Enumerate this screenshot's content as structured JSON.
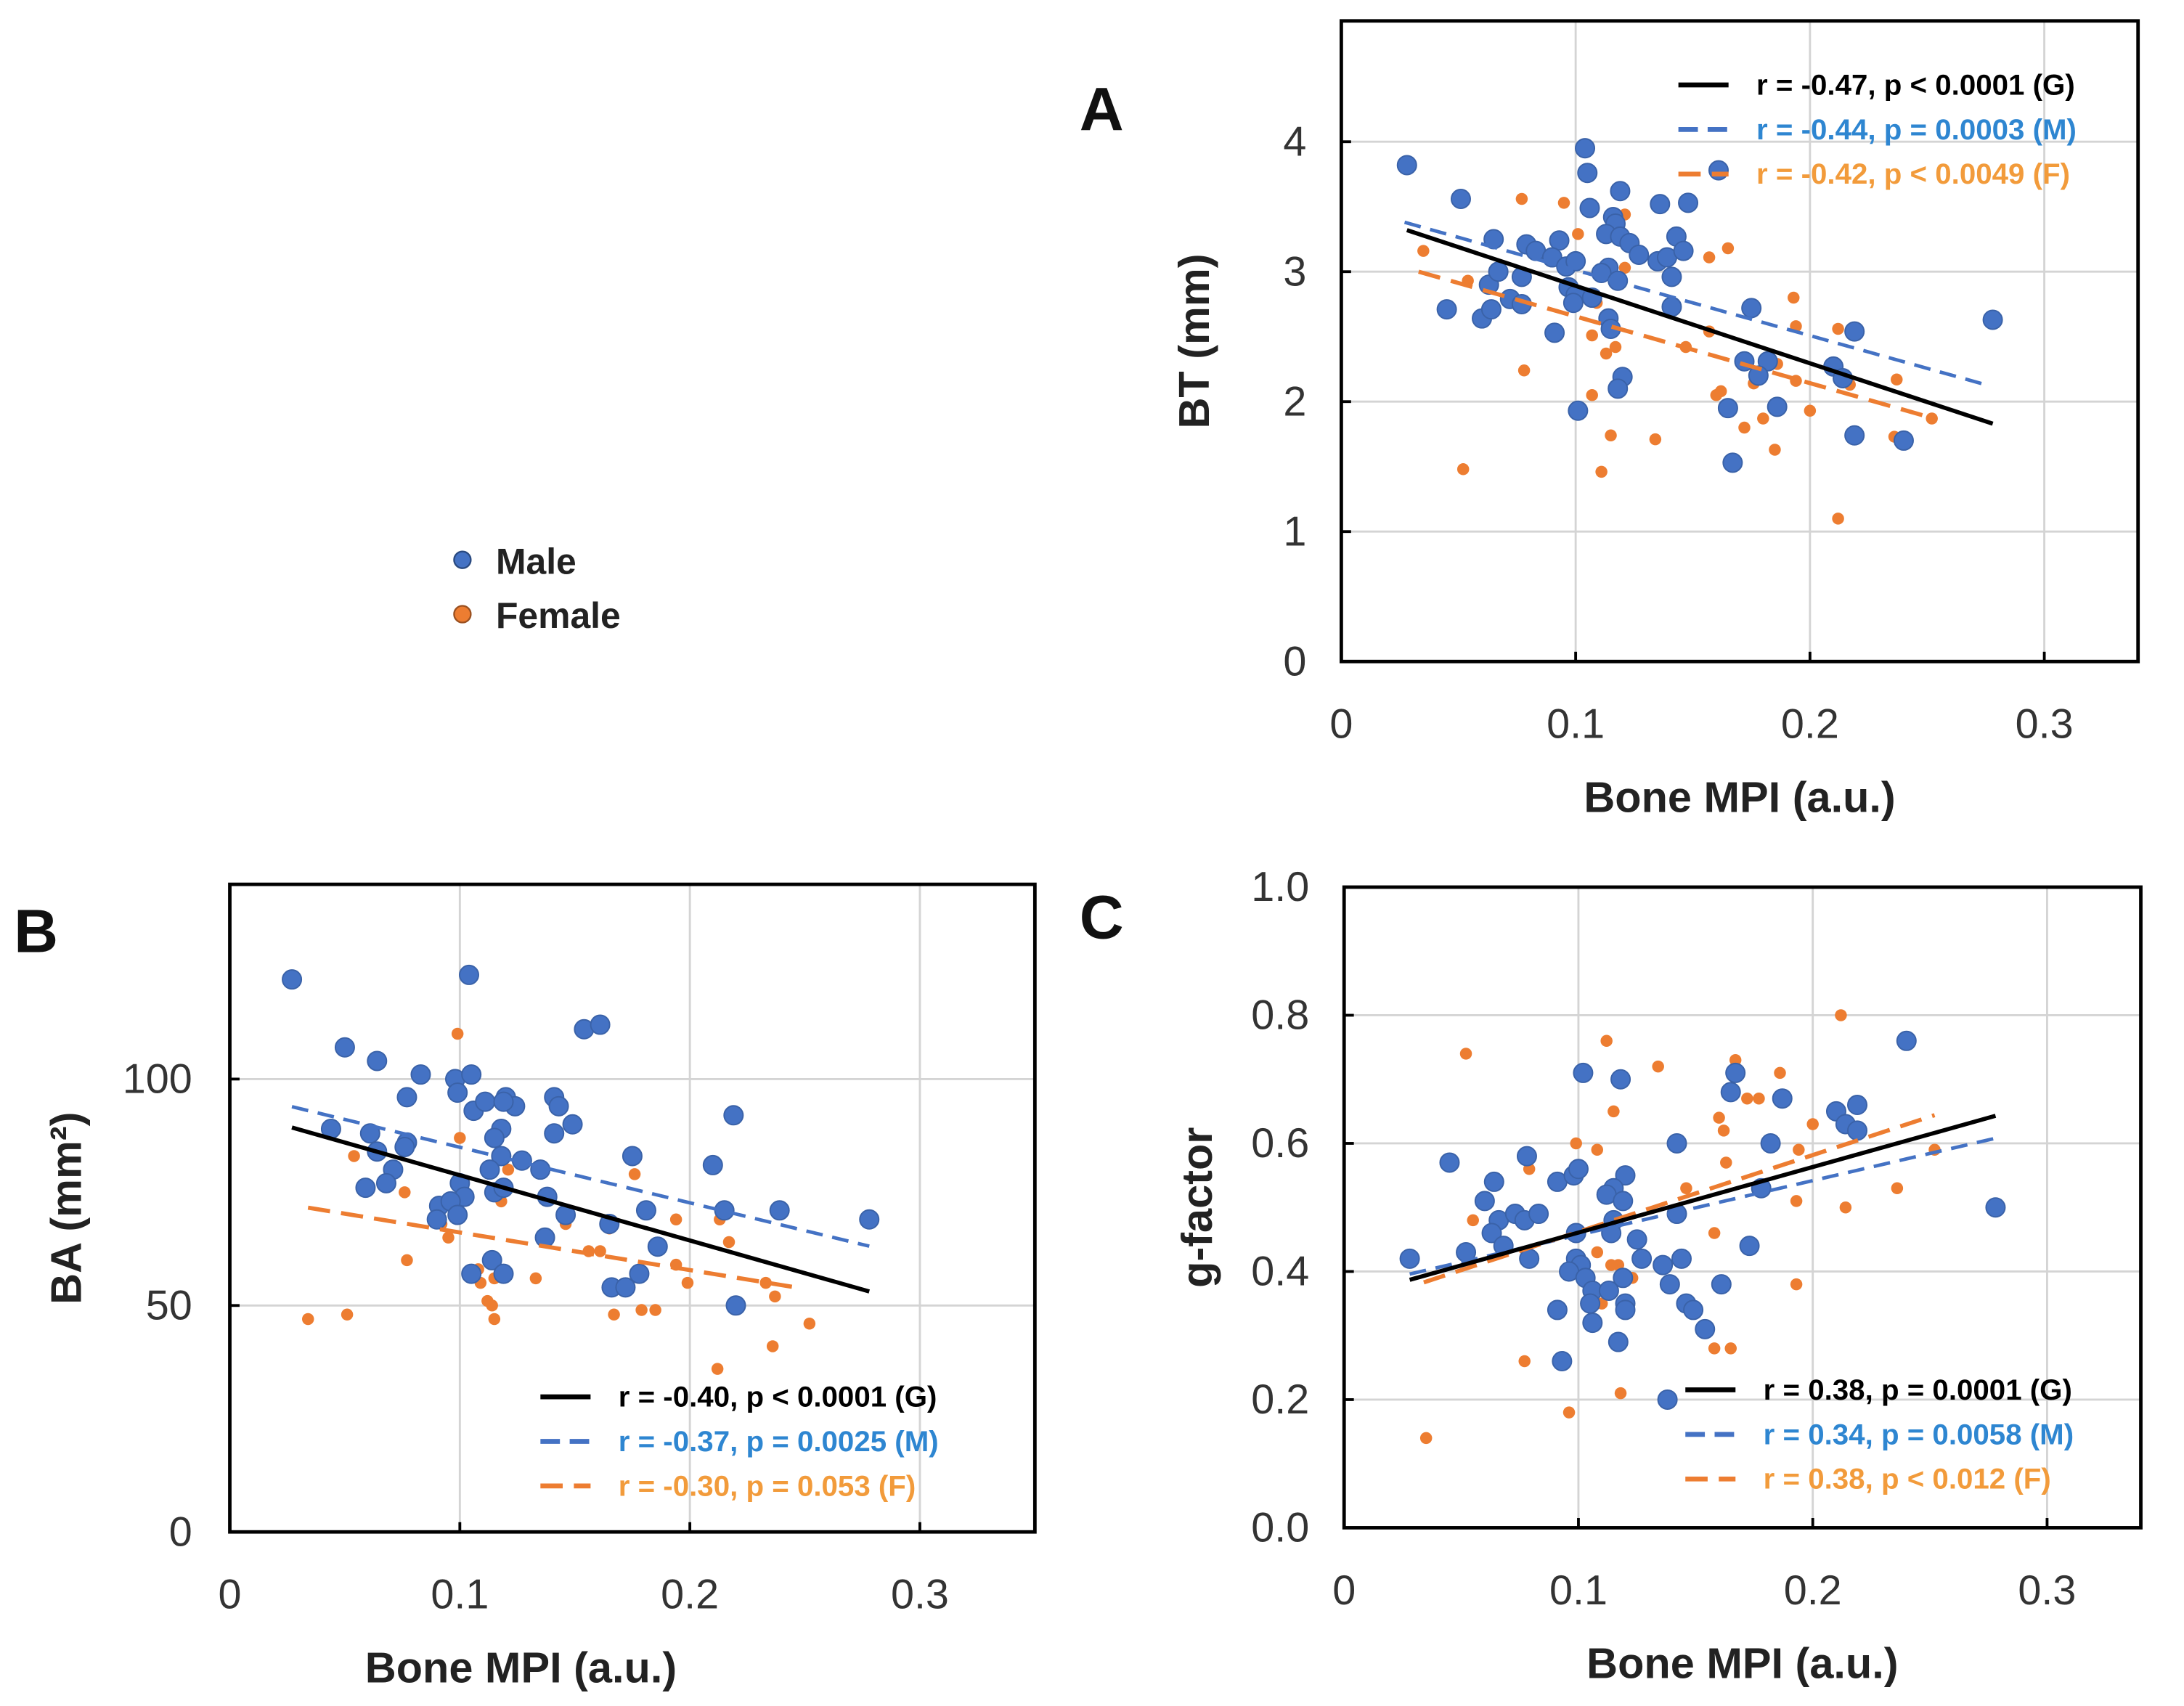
{
  "colors": {
    "male": "#4472C4",
    "female": "#ED7D31",
    "general": "#000000",
    "male_text": "#2E86D1",
    "female_text": "#F29B3B",
    "grid": "#d4d4d4"
  },
  "sex_legend": [
    {
      "label": "Male",
      "color": "#4472C4"
    },
    {
      "label": "Female",
      "color": "#ED7D31"
    }
  ],
  "chart_data": [
    {
      "panel": "A",
      "type": "scatter",
      "xlabel": "Bone MPI (a.u.)",
      "ylabel": "BT  (mm)",
      "xlim": [
        0,
        0.34
      ],
      "ylim": [
        0,
        4.93
      ],
      "xticks": [
        0,
        0.1,
        0.2,
        0.3
      ],
      "xtick_labels": [
        "0",
        "0.1",
        "0.2",
        "0.3"
      ],
      "yticks": [
        0,
        1,
        2,
        3,
        4
      ],
      "ytick_labels": [
        "0",
        "1",
        "2",
        "3",
        "4"
      ],
      "grid": true,
      "legend_placement": "top-right",
      "legend": [
        "r = -0.47, p < 0.0001 (G)",
        "r = -0.44, p = 0.0003 (M)",
        "r = -0.42, p < 0.0049 (F)"
      ],
      "male": [
        [
          0.028,
          3.82
        ],
        [
          0.051,
          3.56
        ],
        [
          0.104,
          3.95
        ],
        [
          0.105,
          3.76
        ],
        [
          0.161,
          3.78
        ],
        [
          0.119,
          3.62
        ],
        [
          0.136,
          3.52
        ],
        [
          0.148,
          3.53
        ],
        [
          0.106,
          3.49
        ],
        [
          0.065,
          3.25
        ],
        [
          0.093,
          3.24
        ],
        [
          0.079,
          3.21
        ],
        [
          0.083,
          3.16
        ],
        [
          0.09,
          3.11
        ],
        [
          0.096,
          3.04
        ],
        [
          0.1,
          3.08
        ],
        [
          0.116,
          3.42
        ],
        [
          0.117,
          3.37
        ],
        [
          0.113,
          3.29
        ],
        [
          0.119,
          3.27
        ],
        [
          0.123,
          3.22
        ],
        [
          0.127,
          3.13
        ],
        [
          0.135,
          3.08
        ],
        [
          0.139,
          3.11
        ],
        [
          0.143,
          3.27
        ],
        [
          0.146,
          3.16
        ],
        [
          0.114,
          3.03
        ],
        [
          0.111,
          2.99
        ],
        [
          0.118,
          2.93
        ],
        [
          0.141,
          2.96
        ],
        [
          0.063,
          2.9
        ],
        [
          0.067,
          3.0
        ],
        [
          0.077,
          2.96
        ],
        [
          0.072,
          2.79
        ],
        [
          0.077,
          2.75
        ],
        [
          0.097,
          2.88
        ],
        [
          0.1,
          2.82
        ],
        [
          0.099,
          2.76
        ],
        [
          0.107,
          2.8
        ],
        [
          0.045,
          2.71
        ],
        [
          0.06,
          2.64
        ],
        [
          0.064,
          2.71
        ],
        [
          0.091,
          2.53
        ],
        [
          0.114,
          2.64
        ],
        [
          0.115,
          2.56
        ],
        [
          0.141,
          2.73
        ],
        [
          0.175,
          2.72
        ],
        [
          0.219,
          2.54
        ],
        [
          0.278,
          2.63
        ],
        [
          0.172,
          2.31
        ],
        [
          0.182,
          2.31
        ],
        [
          0.178,
          2.2
        ],
        [
          0.21,
          2.27
        ],
        [
          0.214,
          2.18
        ],
        [
          0.12,
          2.19
        ],
        [
          0.118,
          2.1
        ],
        [
          0.101,
          1.93
        ],
        [
          0.165,
          1.95
        ],
        [
          0.186,
          1.96
        ],
        [
          0.219,
          1.74
        ],
        [
          0.24,
          1.7
        ],
        [
          0.167,
          1.53
        ]
      ],
      "female": [
        [
          0.077,
          3.56
        ],
        [
          0.095,
          3.53
        ],
        [
          0.121,
          3.44
        ],
        [
          0.101,
          3.29
        ],
        [
          0.165,
          3.18
        ],
        [
          0.157,
          3.11
        ],
        [
          0.035,
          3.16
        ],
        [
          0.054,
          2.93
        ],
        [
          0.121,
          3.03
        ],
        [
          0.109,
          2.76
        ],
        [
          0.075,
          2.78
        ],
        [
          0.107,
          2.51
        ],
        [
          0.117,
          2.42
        ],
        [
          0.113,
          2.37
        ],
        [
          0.157,
          2.54
        ],
        [
          0.147,
          2.42
        ],
        [
          0.193,
          2.8
        ],
        [
          0.194,
          2.58
        ],
        [
          0.212,
          2.56
        ],
        [
          0.186,
          2.29
        ],
        [
          0.194,
          2.16
        ],
        [
          0.176,
          2.14
        ],
        [
          0.16,
          2.05
        ],
        [
          0.162,
          2.08
        ],
        [
          0.2,
          1.93
        ],
        [
          0.217,
          2.13
        ],
        [
          0.237,
          2.17
        ],
        [
          0.252,
          1.87
        ],
        [
          0.078,
          2.24
        ],
        [
          0.107,
          2.05
        ],
        [
          0.115,
          1.74
        ],
        [
          0.134,
          1.71
        ],
        [
          0.172,
          1.8
        ],
        [
          0.18,
          1.87
        ],
        [
          0.185,
          1.63
        ],
        [
          0.236,
          1.73
        ],
        [
          0.052,
          1.48
        ],
        [
          0.111,
          1.46
        ],
        [
          0.212,
          1.1
        ]
      ],
      "fits": {
        "general": [
          [
            0.028,
            3.32
          ],
          [
            0.278,
            1.83
          ]
        ],
        "male": [
          [
            0.027,
            3.38
          ],
          [
            0.275,
            2.13
          ]
        ],
        "female": [
          [
            0.033,
            3.0
          ],
          [
            0.253,
            1.87
          ]
        ]
      }
    },
    {
      "panel": "B",
      "type": "scatter",
      "xlabel": "Bone MPI (a.u.)",
      "ylabel": "BA  (mm²)",
      "xlim": [
        0,
        0.35
      ],
      "ylim": [
        0,
        143
      ],
      "xticks": [
        0,
        0.1,
        0.2,
        0.3
      ],
      "xtick_labels": [
        "0",
        "0.1",
        "0.2",
        "0.3"
      ],
      "yticks": [
        0,
        50,
        100
      ],
      "ytick_labels": [
        "0",
        "50",
        "100"
      ],
      "grid": true,
      "legend_placement": "bottom-right",
      "legend": [
        "r = -0.40, p < 0.0001 (G)",
        "r = -0.37, p = 0.0025 (M)",
        "r = -0.30, p = 0.053    (F)"
      ],
      "male": [
        [
          0.027,
          122
        ],
        [
          0.104,
          123
        ],
        [
          0.05,
          107
        ],
        [
          0.064,
          104
        ],
        [
          0.154,
          111
        ],
        [
          0.161,
          112
        ],
        [
          0.083,
          101
        ],
        [
          0.098,
          100
        ],
        [
          0.105,
          101
        ],
        [
          0.099,
          97
        ],
        [
          0.077,
          96
        ],
        [
          0.106,
          93
        ],
        [
          0.111,
          95
        ],
        [
          0.12,
          96
        ],
        [
          0.124,
          94
        ],
        [
          0.119,
          95
        ],
        [
          0.141,
          96
        ],
        [
          0.143,
          94
        ],
        [
          0.149,
          90
        ],
        [
          0.219,
          92
        ],
        [
          0.044,
          89
        ],
        [
          0.061,
          88
        ],
        [
          0.118,
          89
        ],
        [
          0.141,
          88
        ],
        [
          0.115,
          87
        ],
        [
          0.064,
          84
        ],
        [
          0.077,
          86
        ],
        [
          0.076,
          85
        ],
        [
          0.118,
          83
        ],
        [
          0.127,
          82
        ],
        [
          0.175,
          83
        ],
        [
          0.21,
          81
        ],
        [
          0.113,
          80
        ],
        [
          0.135,
          80
        ],
        [
          0.071,
          80
        ],
        [
          0.068,
          77
        ],
        [
          0.059,
          76
        ],
        [
          0.1,
          77
        ],
        [
          0.102,
          74
        ],
        [
          0.115,
          75
        ],
        [
          0.119,
          76
        ],
        [
          0.138,
          74
        ],
        [
          0.091,
          72
        ],
        [
          0.096,
          73
        ],
        [
          0.099,
          70
        ],
        [
          0.09,
          69
        ],
        [
          0.146,
          70
        ],
        [
          0.181,
          71
        ],
        [
          0.215,
          71
        ],
        [
          0.239,
          71
        ],
        [
          0.278,
          69
        ],
        [
          0.165,
          68
        ],
        [
          0.137,
          65
        ],
        [
          0.186,
          63
        ],
        [
          0.114,
          60
        ],
        [
          0.105,
          57
        ],
        [
          0.119,
          57
        ],
        [
          0.166,
          54
        ],
        [
          0.172,
          54
        ],
        [
          0.178,
          57
        ],
        [
          0.22,
          50
        ]
      ],
      "female": [
        [
          0.099,
          110
        ],
        [
          0.1,
          87
        ],
        [
          0.054,
          83
        ],
        [
          0.076,
          75
        ],
        [
          0.121,
          80
        ],
        [
          0.176,
          79
        ],
        [
          0.077,
          60
        ],
        [
          0.034,
          47
        ],
        [
          0.051,
          48
        ],
        [
          0.095,
          65
        ],
        [
          0.092,
          68
        ],
        [
          0.118,
          73
        ],
        [
          0.146,
          68
        ],
        [
          0.156,
          62
        ],
        [
          0.161,
          62
        ],
        [
          0.165,
          67
        ],
        [
          0.133,
          56
        ],
        [
          0.108,
          58
        ],
        [
          0.109,
          55
        ],
        [
          0.115,
          56
        ],
        [
          0.112,
          51
        ],
        [
          0.114,
          50
        ],
        [
          0.115,
          47
        ],
        [
          0.167,
          48
        ],
        [
          0.179,
          49
        ],
        [
          0.185,
          49
        ],
        [
          0.194,
          69
        ],
        [
          0.194,
          59
        ],
        [
          0.199,
          55
        ],
        [
          0.213,
          69
        ],
        [
          0.217,
          64
        ],
        [
          0.237,
          52
        ],
        [
          0.236,
          41
        ],
        [
          0.252,
          46
        ],
        [
          0.212,
          36
        ],
        [
          0.233,
          55
        ]
      ],
      "fits": {
        "general": [
          [
            0.027,
            89.3
          ],
          [
            0.278,
            53.1
          ]
        ],
        "male": [
          [
            0.027,
            93.9
          ],
          [
            0.278,
            63.1
          ]
        ],
        "female": [
          [
            0.034,
            71.6
          ],
          [
            0.246,
            54.0
          ]
        ]
      }
    },
    {
      "panel": "C",
      "type": "scatter",
      "xlabel": "Bone MPI (a.u.)",
      "ylabel": "g-factor",
      "xlim": [
        0,
        0.34
      ],
      "ylim": [
        0,
        1.0
      ],
      "xticks": [
        0,
        0.1,
        0.2,
        0.3
      ],
      "xtick_labels": [
        "0",
        "0.1",
        "0.2",
        "0.3"
      ],
      "yticks": [
        0,
        0.2,
        0.4,
        0.6,
        0.8,
        1.0
      ],
      "ytick_labels": [
        "0.0",
        "0.2",
        "0.4",
        "0.6",
        "0.8",
        "1.0"
      ],
      "grid": true,
      "legend_placement": "bottom-right",
      "legend": [
        "r = 0.38, p = 0.0001 (G)",
        "r = 0.34, p = 0.0058 (M)",
        "r = 0.38, p < 0.012    (F)"
      ],
      "male": [
        [
          0.028,
          0.42
        ],
        [
          0.045,
          0.57
        ],
        [
          0.052,
          0.43
        ],
        [
          0.06,
          0.51
        ],
        [
          0.064,
          0.54
        ],
        [
          0.066,
          0.48
        ],
        [
          0.063,
          0.46
        ],
        [
          0.068,
          0.44
        ],
        [
          0.073,
          0.49
        ],
        [
          0.077,
          0.48
        ],
        [
          0.078,
          0.58
        ],
        [
          0.083,
          0.49
        ],
        [
          0.079,
          0.42
        ],
        [
          0.091,
          0.54
        ],
        [
          0.098,
          0.55
        ],
        [
          0.1,
          0.56
        ],
        [
          0.102,
          0.71
        ],
        [
          0.118,
          0.7
        ],
        [
          0.12,
          0.55
        ],
        [
          0.115,
          0.53
        ],
        [
          0.112,
          0.52
        ],
        [
          0.119,
          0.51
        ],
        [
          0.115,
          0.48
        ],
        [
          0.114,
          0.46
        ],
        [
          0.099,
          0.46
        ],
        [
          0.125,
          0.45
        ],
        [
          0.127,
          0.42
        ],
        [
          0.136,
          0.41
        ],
        [
          0.144,
          0.42
        ],
        [
          0.142,
          0.6
        ],
        [
          0.142,
          0.49
        ],
        [
          0.099,
          0.42
        ],
        [
          0.101,
          0.41
        ],
        [
          0.096,
          0.4
        ],
        [
          0.103,
          0.39
        ],
        [
          0.106,
          0.37
        ],
        [
          0.113,
          0.37
        ],
        [
          0.119,
          0.39
        ],
        [
          0.105,
          0.35
        ],
        [
          0.12,
          0.35
        ],
        [
          0.12,
          0.34
        ],
        [
          0.106,
          0.32
        ],
        [
          0.091,
          0.34
        ],
        [
          0.117,
          0.29
        ],
        [
          0.093,
          0.26
        ],
        [
          0.139,
          0.38
        ],
        [
          0.146,
          0.35
        ],
        [
          0.149,
          0.34
        ],
        [
          0.154,
          0.31
        ],
        [
          0.161,
          0.38
        ],
        [
          0.138,
          0.2
        ],
        [
          0.165,
          0.68
        ],
        [
          0.167,
          0.71
        ],
        [
          0.187,
          0.67
        ],
        [
          0.182,
          0.6
        ],
        [
          0.178,
          0.53
        ],
        [
          0.173,
          0.44
        ],
        [
          0.21,
          0.65
        ],
        [
          0.214,
          0.63
        ],
        [
          0.219,
          0.62
        ],
        [
          0.219,
          0.66
        ],
        [
          0.24,
          0.76
        ],
        [
          0.278,
          0.5
        ]
      ],
      "female": [
        [
          0.052,
          0.74
        ],
        [
          0.112,
          0.76
        ],
        [
          0.134,
          0.72
        ],
        [
          0.167,
          0.73
        ],
        [
          0.186,
          0.71
        ],
        [
          0.212,
          0.8
        ],
        [
          0.115,
          0.65
        ],
        [
          0.172,
          0.67
        ],
        [
          0.177,
          0.67
        ],
        [
          0.16,
          0.64
        ],
        [
          0.162,
          0.62
        ],
        [
          0.2,
          0.63
        ],
        [
          0.099,
          0.6
        ],
        [
          0.108,
          0.59
        ],
        [
          0.163,
          0.57
        ],
        [
          0.194,
          0.59
        ],
        [
          0.252,
          0.59
        ],
        [
          0.236,
          0.53
        ],
        [
          0.193,
          0.51
        ],
        [
          0.214,
          0.5
        ],
        [
          0.146,
          0.53
        ],
        [
          0.079,
          0.56
        ],
        [
          0.055,
          0.48
        ],
        [
          0.158,
          0.46
        ],
        [
          0.108,
          0.43
        ],
        [
          0.117,
          0.41
        ],
        [
          0.114,
          0.41
        ],
        [
          0.123,
          0.39
        ],
        [
          0.11,
          0.35
        ],
        [
          0.193,
          0.38
        ],
        [
          0.158,
          0.28
        ],
        [
          0.165,
          0.28
        ],
        [
          0.077,
          0.26
        ],
        [
          0.118,
          0.21
        ],
        [
          0.096,
          0.18
        ],
        [
          0.035,
          0.14
        ]
      ],
      "fits": {
        "general": [
          [
            0.028,
            0.387
          ],
          [
            0.278,
            0.643
          ]
        ],
        "male": [
          [
            0.028,
            0.396
          ],
          [
            0.278,
            0.608
          ]
        ],
        "female": [
          [
            0.034,
            0.383
          ],
          [
            0.252,
            0.644
          ]
        ]
      }
    }
  ]
}
